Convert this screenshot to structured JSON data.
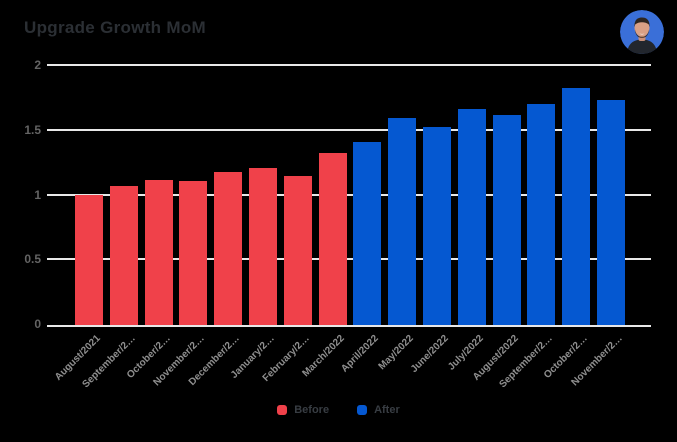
{
  "header": {
    "title": "Upgrade Growth MoM"
  },
  "chart_data": {
    "type": "bar",
    "title": "Upgrade Growth MoM",
    "categories": [
      "August/2021",
      "September/2…",
      "October/2…",
      "November/2…",
      "December/2…",
      "January/2…",
      "February/2…",
      "March/2022",
      "April/2022",
      "May/2022",
      "June/2022",
      "July/2022",
      "August/2022",
      "September/2…",
      "October/2…",
      "November/2…"
    ],
    "series": [
      {
        "name": "Before",
        "color": "#f0414a",
        "values": [
          1.0,
          1.07,
          1.12,
          1.11,
          1.18,
          1.21,
          1.15,
          1.33
        ]
      },
      {
        "name": "After",
        "color": "#0558d1",
        "values": [
          1.41,
          1.6,
          1.53,
          1.67,
          1.62,
          1.71,
          1.83,
          1.74
        ]
      }
    ],
    "ylim": [
      0,
      2
    ],
    "ytick_labels": [
      "0",
      "0.5",
      "1",
      "1.5",
      "2"
    ],
    "grid": true,
    "legend_position": "bottom",
    "background_color": "#000000",
    "gridline_color": "#e8e8e8"
  },
  "legend": {
    "items": [
      {
        "label": "Before",
        "color": "#f0414a"
      },
      {
        "label": "After",
        "color": "#0558d1"
      }
    ]
  }
}
